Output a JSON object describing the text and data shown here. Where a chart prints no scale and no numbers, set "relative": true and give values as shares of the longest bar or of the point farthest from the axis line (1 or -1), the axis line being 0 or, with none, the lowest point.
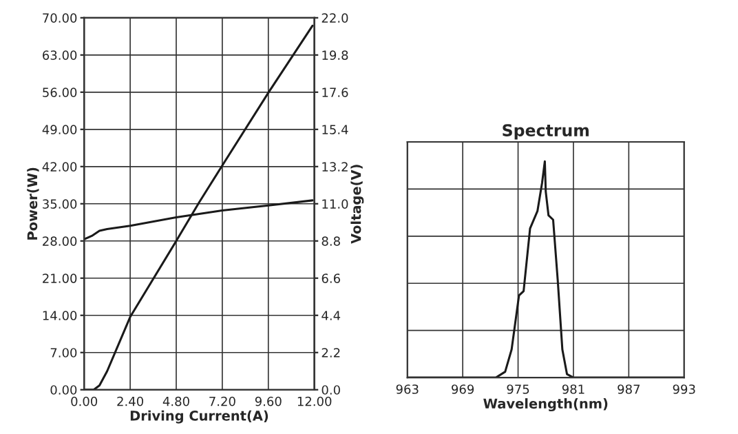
{
  "chart_data": [
    {
      "type": "line",
      "xlabel": "Driving Current(A)",
      "ylabel": "Power(W)",
      "y2label": "Voltage(V)",
      "grid": true,
      "legend": false,
      "xlim": [
        0,
        12
      ],
      "xticks": [
        {
          "value": 0,
          "label": "0.00"
        },
        {
          "value": 2.4,
          "label": "2.40"
        },
        {
          "value": 4.8,
          "label": "4.80"
        },
        {
          "value": 7.2,
          "label": "7.20"
        },
        {
          "value": 9.6,
          "label": "9.60"
        },
        {
          "value": 12,
          "label": "12.00"
        }
      ],
      "ylim": [
        0,
        70
      ],
      "yticks": [
        {
          "value": 0,
          "label": "0.00"
        },
        {
          "value": 7,
          "label": "7.00"
        },
        {
          "value": 14,
          "label": "14.00"
        },
        {
          "value": 21,
          "label": "21.00"
        },
        {
          "value": 28,
          "label": "28.00"
        },
        {
          "value": 35,
          "label": "35.00"
        },
        {
          "value": 42,
          "label": "42.00"
        },
        {
          "value": 49,
          "label": "49.00"
        },
        {
          "value": 56,
          "label": "56.00"
        },
        {
          "value": 63,
          "label": "63.00"
        },
        {
          "value": 70,
          "label": "70.00"
        }
      ],
      "y2lim": [
        0,
        22
      ],
      "y2ticks": [
        {
          "value": 0,
          "label": "0.0"
        },
        {
          "value": 2.2,
          "label": "2.2"
        },
        {
          "value": 4.4,
          "label": "4.4"
        },
        {
          "value": 6.6,
          "label": "6.6"
        },
        {
          "value": 8.8,
          "label": "8.8"
        },
        {
          "value": 11,
          "label": "11.0"
        },
        {
          "value": 13.2,
          "label": "13.2"
        },
        {
          "value": 15.4,
          "label": "15.4"
        },
        {
          "value": 17.6,
          "label": "17.6"
        },
        {
          "value": 19.8,
          "label": "19.8"
        },
        {
          "value": 22,
          "label": "22.0"
        }
      ],
      "series": [
        {
          "color": "#1a1a1a",
          "x": [
            0,
            0.5,
            0.8,
            1.2,
            2.4,
            4.8,
            6.0,
            7.2,
            9.6,
            11.9
          ],
          "values": [
            0,
            0,
            0.8,
            3.5,
            13.7,
            28.0,
            35.3,
            42.2,
            55.9,
            68.5
          ]
        },
        {
          "color": "#1a1a1a",
          "axis": "y2",
          "x": [
            0,
            0.4,
            0.8,
            1.2,
            2.4,
            4.8,
            7.2,
            9.6,
            11.9
          ],
          "values": [
            8.9,
            9.1,
            9.4,
            9.5,
            9.7,
            10.2,
            10.6,
            10.9,
            11.2
          ]
        }
      ]
    },
    {
      "type": "line",
      "title": "Spectrum",
      "xlabel": "Wavelength(nm)",
      "relative": true,
      "grid": true,
      "legend": false,
      "tick_labels": "x",
      "xlim": [
        963,
        993
      ],
      "xticks": [
        963,
        969,
        975,
        981,
        987,
        993
      ],
      "series": [
        {
          "color": "#1a1a1a",
          "x": [
            963,
            972.6,
            973.6,
            974.3,
            975.1,
            975.6,
            976.3,
            977.1,
            977.6,
            977.9,
            978.0,
            978.3,
            978.8,
            979.3,
            979.8,
            980.3,
            981.0,
            993
          ],
          "values": [
            0,
            0,
            0.027,
            0.13,
            0.38,
            0.4,
            0.69,
            0.77,
            0.9,
            1,
            0.86,
            0.75,
            0.73,
            0.45,
            0.13,
            0.016,
            0,
            0
          ]
        }
      ]
    }
  ]
}
